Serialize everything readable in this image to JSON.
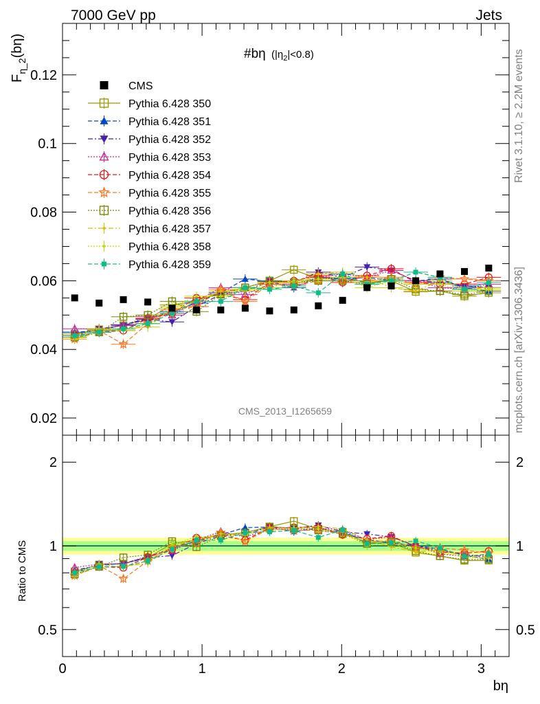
{
  "header": {
    "left": "7000 GeV pp",
    "right": "Jets"
  },
  "side_labels": {
    "rivet": "Rivet 3.1.10, ≥ 2.2M events",
    "mcplots": "mcplots.cern.ch [arXiv:1306.3436]"
  },
  "analysis_id": "CMS_2013_I1265659",
  "chart_data": [
    {
      "type": "scatter",
      "panel": "main",
      "plot_title": "#bη (|η2|<0.8)",
      "plot_title_main": "#bη",
      "plot_title_cond_a": "(|η",
      "plot_title_cond_sub": "2",
      "plot_title_cond_b": "|<0.8)",
      "ylabel_main": "F",
      "ylabel_sub": "η_2",
      "ylabel_tail": "(bη)",
      "xlabel": "bη",
      "xlim": [
        0,
        3.2
      ],
      "ylim": [
        0.015,
        0.135
      ],
      "yticks": [
        0.02,
        0.04,
        0.06,
        0.08,
        0.1,
        0.12
      ],
      "ytick_labels": [
        "0.02",
        "0.04",
        "0.06",
        "0.08",
        "0.1",
        "0.12"
      ],
      "legend_position": "top-left",
      "x": [
        0.087,
        0.262,
        0.436,
        0.611,
        0.785,
        0.96,
        1.134,
        1.309,
        1.484,
        1.658,
        1.833,
        2.007,
        2.182,
        2.356,
        2.531,
        2.705,
        2.88,
        3.054
      ],
      "series": [
        {
          "name": "CMS",
          "color": "#000000",
          "marker": "filled-square",
          "line": "none",
          "values": [
            0.055,
            0.0535,
            0.0545,
            0.0538,
            0.052,
            0.0515,
            0.0515,
            0.052,
            0.0512,
            0.0515,
            0.0527,
            0.0543,
            0.058,
            0.0585,
            0.06,
            0.062,
            0.0627,
            0.0637
          ]
        },
        {
          "name": "Pythia 6.428 350",
          "color": "#9a9a00",
          "marker": "open-square",
          "line": "solid",
          "values": [
            0.0445,
            0.0458,
            0.047,
            0.0488,
            0.053,
            0.054,
            0.0565,
            0.058,
            0.06,
            0.0632,
            0.0605,
            0.061,
            0.0595,
            0.06,
            0.0568,
            0.057,
            0.0555,
            0.0565
          ]
        },
        {
          "name": "Pythia 6.428 351",
          "color": "#0044cc",
          "marker": "filled-triangle-up",
          "line": "dashed",
          "values": [
            0.045,
            0.0455,
            0.0472,
            0.049,
            0.051,
            0.0535,
            0.0565,
            0.0605,
            0.0598,
            0.058,
            0.061,
            0.0605,
            0.061,
            0.06,
            0.06,
            0.0605,
            0.058,
            0.057
          ]
        },
        {
          "name": "Pythia 6.428 352",
          "color": "#4422aa",
          "marker": "filled-triangle-down",
          "line": "dashdot",
          "values": [
            0.044,
            0.046,
            0.047,
            0.0488,
            0.048,
            0.0525,
            0.056,
            0.057,
            0.06,
            0.0595,
            0.0625,
            0.061,
            0.064,
            0.063,
            0.06,
            0.0595,
            0.0585,
            0.058
          ]
        },
        {
          "name": "Pythia 6.428 353",
          "color": "#cc2299",
          "marker": "open-triangle-up",
          "line": "dotted",
          "values": [
            0.046,
            0.046,
            0.047,
            0.0495,
            0.05,
            0.054,
            0.058,
            0.056,
            0.059,
            0.059,
            0.061,
            0.062,
            0.061,
            0.063,
            0.06,
            0.058,
            0.0575,
            0.059
          ]
        },
        {
          "name": "Pythia 6.428 354",
          "color": "#ee1111",
          "marker": "open-circle",
          "line": "dashed",
          "values": [
            0.044,
            0.045,
            0.0455,
            0.049,
            0.0505,
            0.055,
            0.056,
            0.0545,
            0.0595,
            0.06,
            0.0615,
            0.0595,
            0.0615,
            0.0635,
            0.0595,
            0.059,
            0.059,
            0.061
          ]
        },
        {
          "name": "Pythia 6.428 355",
          "color": "#ff7722",
          "marker": "open-star",
          "line": "dashed",
          "values": [
            0.043,
            0.0455,
            0.0415,
            0.0475,
            0.0515,
            0.0525,
            0.0575,
            0.054,
            0.059,
            0.0585,
            0.06,
            0.06,
            0.06,
            0.061,
            0.059,
            0.061,
            0.0605,
            0.06
          ]
        },
        {
          "name": "Pythia 6.428 356",
          "color": "#7a8800",
          "marker": "open-square",
          "line": "dotted",
          "values": [
            0.0435,
            0.045,
            0.0495,
            0.05,
            0.054,
            0.051,
            0.056,
            0.058,
            0.06,
            0.0595,
            0.06,
            0.06,
            0.059,
            0.0605,
            0.0575,
            0.057,
            0.056,
            0.057
          ]
        },
        {
          "name": "Pythia 6.428 357",
          "color": "#ddbb00",
          "marker": "dot",
          "line": "dashdot",
          "values": [
            0.043,
            0.045,
            0.046,
            0.0465,
            0.052,
            0.054,
            0.057,
            0.057,
            0.0595,
            0.0595,
            0.062,
            0.0625,
            0.061,
            0.058,
            0.057,
            0.06,
            0.0575,
            0.058
          ]
        },
        {
          "name": "Pythia 6.428 358",
          "color": "#bbdd00",
          "marker": "dot",
          "line": "dotted",
          "values": [
            0.044,
            0.046,
            0.0455,
            0.0475,
            0.0525,
            0.0555,
            0.0555,
            0.0575,
            0.058,
            0.06,
            0.0605,
            0.061,
            0.058,
            0.06,
            0.059,
            0.059,
            0.057,
            0.0575
          ]
        },
        {
          "name": "Pythia 6.428 359",
          "color": "#11bb88",
          "marker": "filled-square-small",
          "line": "dashed",
          "values": [
            0.044,
            0.045,
            0.046,
            0.0475,
            0.0505,
            0.054,
            0.054,
            0.058,
            0.0575,
            0.0585,
            0.0565,
            0.062,
            0.059,
            0.06,
            0.0625,
            0.061,
            0.0575,
            0.0595
          ]
        }
      ]
    },
    {
      "type": "line",
      "panel": "ratio",
      "ylabel": "Ratio to CMS",
      "xlabel": "bη",
      "xlim": [
        0,
        3.2
      ],
      "ylim": [
        0.4,
        2.5
      ],
      "yscale": "log",
      "yticks": [
        0.5,
        1,
        2
      ],
      "ytick_labels": [
        "0.5",
        "1",
        "2"
      ],
      "xticks": [
        0,
        1,
        2,
        3
      ],
      "xtick_labels": [
        "0",
        "1",
        "2",
        "3"
      ],
      "reference_line": 1,
      "band_inner": 0.04,
      "band_outer": 0.07
    }
  ]
}
